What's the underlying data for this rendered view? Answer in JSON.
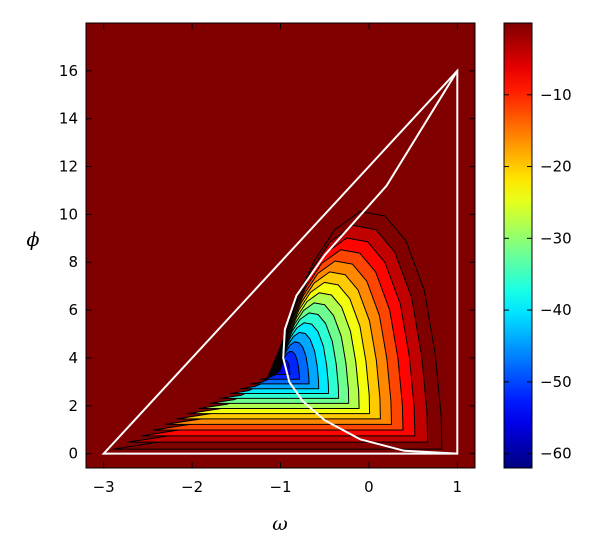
{
  "chart_data": {
    "type": "heatmap",
    "subtype": "filled-contour",
    "title": "",
    "xlabel": "ω",
    "ylabel": "ϕ",
    "xlim": [
      -3.2,
      1.2
    ],
    "ylim": [
      -0.6,
      18
    ],
    "x_ticks": [
      -3,
      -2,
      -1,
      0,
      1
    ],
    "x_tick_labels": [
      "−3",
      "−2",
      "−1",
      "0",
      "1"
    ],
    "y_ticks": [
      0,
      2,
      4,
      6,
      8,
      10,
      12,
      14,
      16
    ],
    "y_tick_labels": [
      "0",
      "2",
      "4",
      "6",
      "8",
      "10",
      "12",
      "14",
      "16"
    ],
    "colorbar": {
      "range": [
        -62,
        0
      ],
      "ticks": [
        -10,
        -20,
        -30,
        -40,
        -50,
        -60
      ],
      "tick_labels": [
        "−10",
        "−20",
        "−30",
        "−40",
        "−50",
        "−60"
      ],
      "colormap": "jet"
    },
    "field": {
      "minimum_value": -62,
      "minimum_location": [
        -1.0,
        3.5
      ],
      "outer_contour_extent": {
        "omega": [
          -3.0,
          1.0
        ],
        "phi_max": 10.5
      },
      "contour_levels": [
        -58,
        -54,
        -50,
        -46,
        -42,
        -38,
        -34,
        -30,
        -26,
        -22,
        -18,
        -14,
        -10,
        -6,
        -2
      ],
      "background_value": 0
    },
    "overlay_curves": [
      {
        "kind": "triangle",
        "color": "#ffffff",
        "vertices": [
          [
            -3,
            0
          ],
          [
            1,
            0
          ],
          [
            1,
            16
          ]
        ]
      },
      {
        "kind": "curve",
        "color": "#ffffff",
        "points": [
          [
            1,
            16
          ],
          [
            0.2,
            11.2
          ],
          [
            -0.5,
            8.3
          ],
          [
            -0.82,
            6.6
          ],
          [
            -0.95,
            5.2
          ],
          [
            -0.97,
            4.0
          ],
          [
            -0.9,
            3.0
          ],
          [
            -0.75,
            2.2
          ],
          [
            -0.5,
            1.4
          ],
          [
            -0.1,
            0.6
          ],
          [
            0.4,
            0.12
          ],
          [
            1,
            0
          ]
        ]
      }
    ],
    "colors": {
      "background": "#800000",
      "overlay": "#ffffff",
      "contour_line": "#000000"
    }
  }
}
